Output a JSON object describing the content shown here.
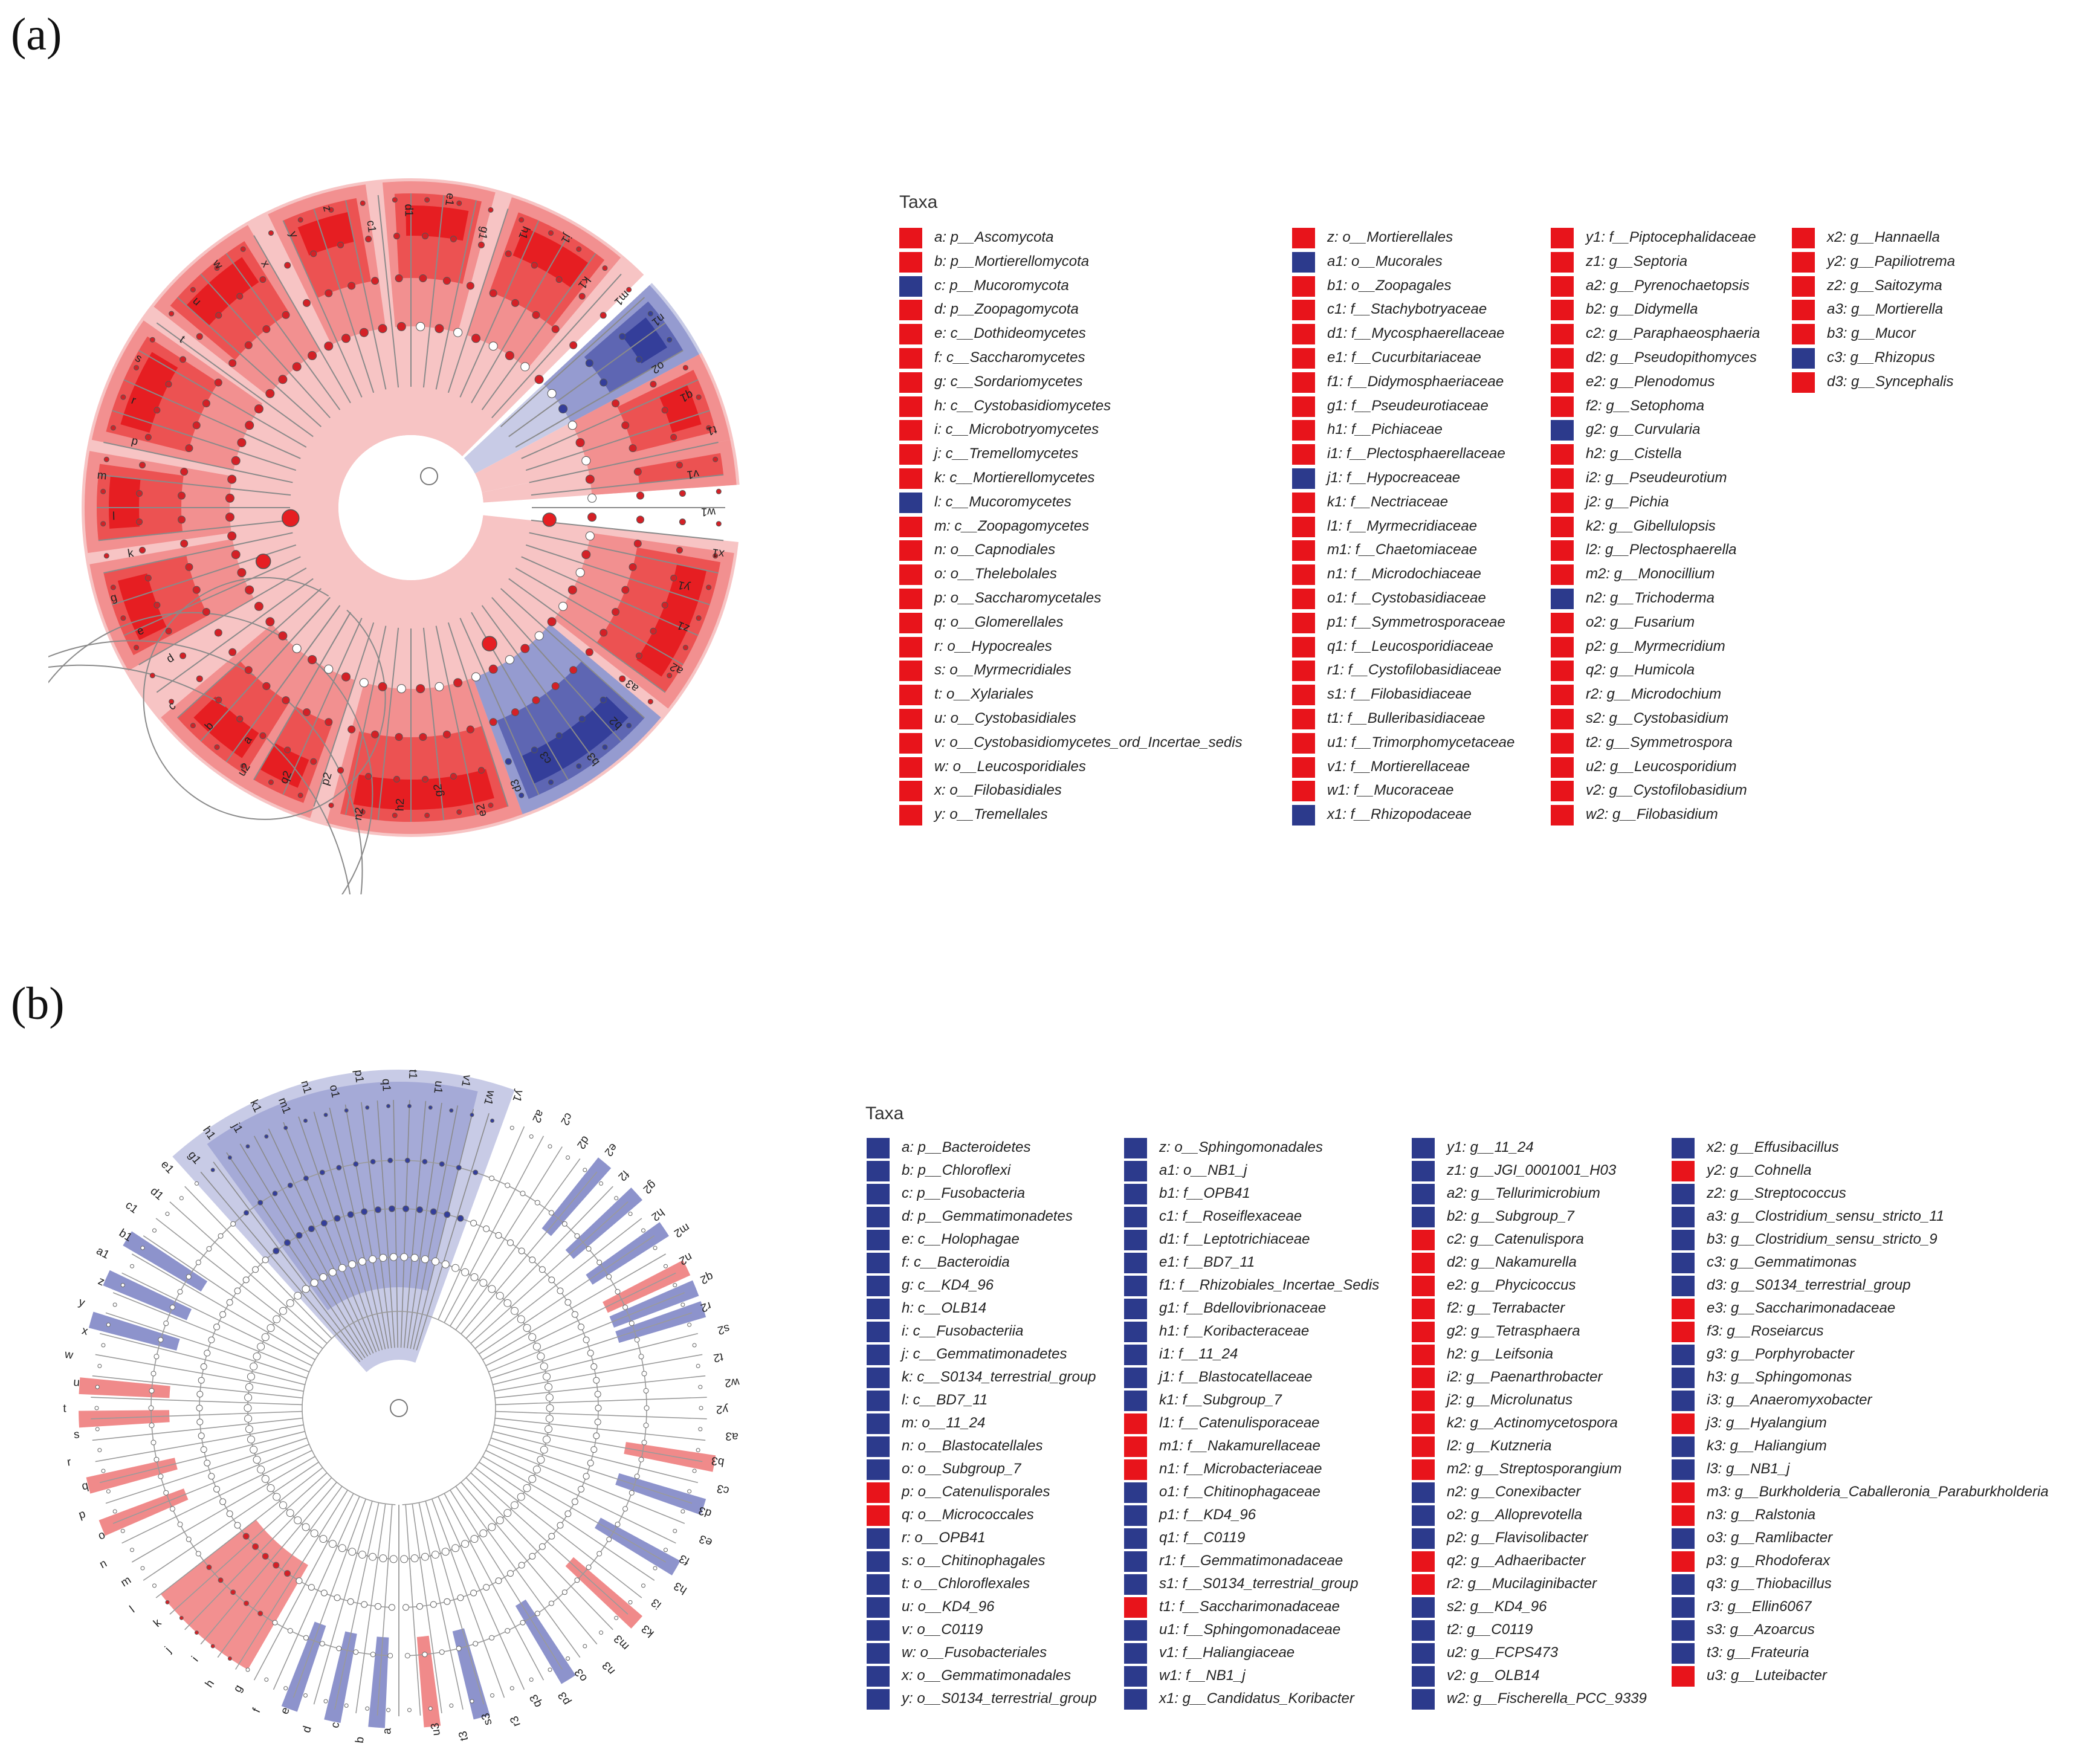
{
  "colors": {
    "enriched_red": "#e8141b",
    "enriched_blue": "#2c3a8c"
  },
  "panel_a": {
    "label": "(a)",
    "legend_title": "Taxa",
    "columns": [
      [
        {
          "text": "a: p__Ascomycota",
          "c": "red"
        },
        {
          "text": "b: p__Mortierellomycota",
          "c": "red"
        },
        {
          "text": "c: p__Mucoromycota",
          "c": "blue"
        },
        {
          "text": "d: p__Zoopagomycota",
          "c": "red"
        },
        {
          "text": "e: c__Dothideomycetes",
          "c": "red"
        },
        {
          "text": "f: c__Saccharomycetes",
          "c": "red"
        },
        {
          "text": "g: c__Sordariomycetes",
          "c": "red"
        },
        {
          "text": "h: c__Cystobasidiomycetes",
          "c": "red"
        },
        {
          "text": "i: c__Microbotryomycetes",
          "c": "red"
        },
        {
          "text": "j: c__Tremellomycetes",
          "c": "red"
        },
        {
          "text": "k: c__Mortierellomycetes",
          "c": "red"
        },
        {
          "text": "l: c__Mucoromycetes",
          "c": "blue"
        },
        {
          "text": "m: c__Zoopagomycetes",
          "c": "red"
        },
        {
          "text": "n: o__Capnodiales",
          "c": "red"
        },
        {
          "text": "o: o__Thelebolales",
          "c": "red"
        },
        {
          "text": "p: o__Saccharomycetales",
          "c": "red"
        },
        {
          "text": "q: o__Glomerellales",
          "c": "red"
        },
        {
          "text": "r: o__Hypocreales",
          "c": "red"
        },
        {
          "text": "s: o__Myrmecridiales",
          "c": "red"
        },
        {
          "text": "t: o__Xylariales",
          "c": "red"
        },
        {
          "text": "u: o__Cystobasidiales",
          "c": "red"
        },
        {
          "text": "v: o__Cystobasidiomycetes_ord_Incertae_sedis",
          "c": "red"
        },
        {
          "text": "w: o__Leucosporidiales",
          "c": "red"
        },
        {
          "text": "x: o__Filobasidiales",
          "c": "red"
        },
        {
          "text": "y: o__Tremellales",
          "c": "red"
        }
      ],
      [
        {
          "text": "z: o__Mortierellales",
          "c": "red"
        },
        {
          "text": "a1: o__Mucorales",
          "c": "blue"
        },
        {
          "text": "b1: o__Zoopagales",
          "c": "red"
        },
        {
          "text": "c1: f__Stachybotryaceae",
          "c": "red"
        },
        {
          "text": "d1: f__Mycosphaerellaceae",
          "c": "red"
        },
        {
          "text": "e1: f__Cucurbitariaceae",
          "c": "red"
        },
        {
          "text": "f1: f__Didymosphaeriaceae",
          "c": "red"
        },
        {
          "text": "g1: f__Pseudeurotiaceae",
          "c": "red"
        },
        {
          "text": "h1: f__Pichiaceae",
          "c": "red"
        },
        {
          "text": "i1: f__Plectosphaerellaceae",
          "c": "red"
        },
        {
          "text": "j1: f__Hypocreaceae",
          "c": "blue"
        },
        {
          "text": "k1: f__Nectriaceae",
          "c": "red"
        },
        {
          "text": "l1: f__Myrmecridiaceae",
          "c": "red"
        },
        {
          "text": "m1: f__Chaetomiaceae",
          "c": "red"
        },
        {
          "text": "n1: f__Microdochiaceae",
          "c": "red"
        },
        {
          "text": "o1: f__Cystobasidiaceae",
          "c": "red"
        },
        {
          "text": "p1: f__Symmetrosporaceae",
          "c": "red"
        },
        {
          "text": "q1: f__Leucosporidiaceae",
          "c": "red"
        },
        {
          "text": "r1: f__Cystofilobasidiaceae",
          "c": "red"
        },
        {
          "text": "s1: f__Filobasidiaceae",
          "c": "red"
        },
        {
          "text": "t1: f__Bulleribasidiaceae",
          "c": "red"
        },
        {
          "text": "u1: f__Trimorphomycetaceae",
          "c": "red"
        },
        {
          "text": "v1: f__Mortierellaceae",
          "c": "red"
        },
        {
          "text": "w1: f__Mucoraceae",
          "c": "red"
        },
        {
          "text": "x1: f__Rhizopodaceae",
          "c": "blue"
        }
      ],
      [
        {
          "text": "y1: f__Piptocephalidaceae",
          "c": "red"
        },
        {
          "text": "z1: g__Septoria",
          "c": "red"
        },
        {
          "text": "a2: g__Pyrenochaetopsis",
          "c": "red"
        },
        {
          "text": "b2: g__Didymella",
          "c": "red"
        },
        {
          "text": "c2: g__Paraphaeosphaeria",
          "c": "red"
        },
        {
          "text": "d2: g__Pseudopithomyces",
          "c": "red"
        },
        {
          "text": "e2: g__Plenodomus",
          "c": "red"
        },
        {
          "text": "f2: g__Setophoma",
          "c": "red"
        },
        {
          "text": "g2: g__Curvularia",
          "c": "blue"
        },
        {
          "text": "h2: g__Cistella",
          "c": "red"
        },
        {
          "text": "i2: g__Pseudeurotium",
          "c": "red"
        },
        {
          "text": "j2: g__Pichia",
          "c": "red"
        },
        {
          "text": "k2: g__Gibellulopsis",
          "c": "red"
        },
        {
          "text": "l2: g__Plectosphaerella",
          "c": "red"
        },
        {
          "text": "m2: g__Monocillium",
          "c": "red"
        },
        {
          "text": "n2: g__Trichoderma",
          "c": "blue"
        },
        {
          "text": "o2: g__Fusarium",
          "c": "red"
        },
        {
          "text": "p2: g__Myrmecridium",
          "c": "red"
        },
        {
          "text": "q2: g__Humicola",
          "c": "red"
        },
        {
          "text": "r2: g__Microdochium",
          "c": "red"
        },
        {
          "text": "s2: g__Cystobasidium",
          "c": "red"
        },
        {
          "text": "t2: g__Symmetrospora",
          "c": "red"
        },
        {
          "text": "u2: g__Leucosporidium",
          "c": "red"
        },
        {
          "text": "v2: g__Cystofilobasidium",
          "c": "red"
        },
        {
          "text": "w2: g__Filobasidium",
          "c": "red"
        }
      ],
      [
        {
          "text": "x2: g__Hannaella",
          "c": "red"
        },
        {
          "text": "y2: g__Papiliotrema",
          "c": "red"
        },
        {
          "text": "z2: g__Saitozyma",
          "c": "red"
        },
        {
          "text": "a3: g__Mortierella",
          "c": "red"
        },
        {
          "text": "b3: g__Mucor",
          "c": "red"
        },
        {
          "text": "c3: g__Rhizopus",
          "c": "blue"
        },
        {
          "text": "d3: g__Syncephalis",
          "c": "red"
        }
      ]
    ],
    "cladogram_labels": [
      "a",
      "b",
      "c",
      "d",
      "e",
      "g",
      "k",
      "l",
      "m",
      "p",
      "r",
      "s",
      "t",
      "u",
      "w",
      "x",
      "y",
      "z",
      "c1",
      "d1",
      "e1",
      "g1",
      "h1",
      "j1",
      "k1",
      "m1",
      "n1",
      "o2",
      "q1",
      "t1",
      "v1",
      "w1",
      "x1",
      "y1",
      "z1",
      "a2",
      "a3",
      "b2",
      "b3",
      "c3",
      "d3",
      "e2",
      "g2",
      "h2",
      "n2",
      "p2",
      "q2",
      "u2"
    ]
  },
  "panel_b": {
    "label": "(b)",
    "legend_title": "Taxa",
    "columns": [
      [
        {
          "text": "a: p__Bacteroidetes",
          "c": "blue"
        },
        {
          "text": "b: p__Chloroflexi",
          "c": "blue"
        },
        {
          "text": "c: p__Fusobacteria",
          "c": "blue"
        },
        {
          "text": "d: p__Gemmatimonadetes",
          "c": "blue"
        },
        {
          "text": "e: c__Holophagae",
          "c": "blue"
        },
        {
          "text": "f: c__Bacteroidia",
          "c": "blue"
        },
        {
          "text": "g: c__KD4_96",
          "c": "blue"
        },
        {
          "text": "h: c__OLB14",
          "c": "blue"
        },
        {
          "text": "i: c__Fusobacteriia",
          "c": "blue"
        },
        {
          "text": "j: c__Gemmatimonadetes",
          "c": "blue"
        },
        {
          "text": "k: c__S0134_terrestrial_group",
          "c": "blue"
        },
        {
          "text": "l: c__BD7_11",
          "c": "blue"
        },
        {
          "text": "m: o__11_24",
          "c": "blue"
        },
        {
          "text": "n: o__Blastocatellales",
          "c": "blue"
        },
        {
          "text": "o: o__Subgroup_7",
          "c": "blue"
        },
        {
          "text": "p: o__Catenulisporales",
          "c": "red"
        },
        {
          "text": "q: o__Micrococcales",
          "c": "red"
        },
        {
          "text": "r: o__OPB41",
          "c": "blue"
        },
        {
          "text": "s: o__Chitinophagales",
          "c": "blue"
        },
        {
          "text": "t: o__Chloroflexales",
          "c": "blue"
        },
        {
          "text": "u: o__KD4_96",
          "c": "blue"
        },
        {
          "text": "v: o__C0119",
          "c": "blue"
        },
        {
          "text": "w: o__Fusobacteriales",
          "c": "blue"
        },
        {
          "text": "x: o__Gemmatimonadales",
          "c": "blue"
        },
        {
          "text": "y: o__S0134_terrestrial_group",
          "c": "blue"
        }
      ],
      [
        {
          "text": "z: o__Sphingomonadales",
          "c": "blue"
        },
        {
          "text": "a1: o__NB1_j",
          "c": "blue"
        },
        {
          "text": "b1: f__OPB41",
          "c": "blue"
        },
        {
          "text": "c1: f__Roseiflexaceae",
          "c": "blue"
        },
        {
          "text": "d1: f__Leptotrichiaceae",
          "c": "blue"
        },
        {
          "text": "e1: f__BD7_11",
          "c": "blue"
        },
        {
          "text": "f1: f__Rhizobiales_Incertae_Sedis",
          "c": "blue"
        },
        {
          "text": "g1: f__Bdellovibrionaceae",
          "c": "blue"
        },
        {
          "text": "h1: f__Koribacteraceae",
          "c": "blue"
        },
        {
          "text": "i1: f__11_24",
          "c": "blue"
        },
        {
          "text": "j1: f__Blastocatellaceae",
          "c": "blue"
        },
        {
          "text": "k1: f__Subgroup_7",
          "c": "blue"
        },
        {
          "text": "l1: f__Catenulisporaceae",
          "c": "red"
        },
        {
          "text": "m1: f__Nakamurellaceae",
          "c": "red"
        },
        {
          "text": "n1: f__Microbacteriaceae",
          "c": "red"
        },
        {
          "text": "o1: f__Chitinophagaceae",
          "c": "blue"
        },
        {
          "text": "p1: f__KD4_96",
          "c": "blue"
        },
        {
          "text": "q1: f__C0119",
          "c": "blue"
        },
        {
          "text": "r1: f__Gemmatimonadaceae",
          "c": "blue"
        },
        {
          "text": "s1: f__S0134_terrestrial_group",
          "c": "blue"
        },
        {
          "text": "t1: f__Saccharimonadaceae",
          "c": "red"
        },
        {
          "text": "u1: f__Sphingomonadaceae",
          "c": "blue"
        },
        {
          "text": "v1: f__Haliangiaceae",
          "c": "blue"
        },
        {
          "text": "w1: f__NB1_j",
          "c": "blue"
        },
        {
          "text": "x1: g__Candidatus_Koribacter",
          "c": "blue"
        }
      ],
      [
        {
          "text": "y1: g__11_24",
          "c": "blue"
        },
        {
          "text": "z1: g__JGI_0001001_H03",
          "c": "blue"
        },
        {
          "text": "a2: g__Tellurimicrobium",
          "c": "blue"
        },
        {
          "text": "b2: g__Subgroup_7",
          "c": "blue"
        },
        {
          "text": "c2: g__Catenulispora",
          "c": "red"
        },
        {
          "text": "d2: g__Nakamurella",
          "c": "red"
        },
        {
          "text": "e2: g__Phycicoccus",
          "c": "red"
        },
        {
          "text": "f2: g__Terrabacter",
          "c": "red"
        },
        {
          "text": "g2: g__Tetrasphaera",
          "c": "red"
        },
        {
          "text": "h2: g__Leifsonia",
          "c": "red"
        },
        {
          "text": "i2: g__Paenarthrobacter",
          "c": "red"
        },
        {
          "text": "j2: g__Microlunatus",
          "c": "red"
        },
        {
          "text": "k2: g__Actinomycetospora",
          "c": "red"
        },
        {
          "text": "l2: g__Kutzneria",
          "c": "red"
        },
        {
          "text": "m2: g__Streptosporangium",
          "c": "red"
        },
        {
          "text": "n2: g__Conexibacter",
          "c": "blue"
        },
        {
          "text": "o2: g__Alloprevotella",
          "c": "blue"
        },
        {
          "text": "p2: g__Flavisolibacter",
          "c": "blue"
        },
        {
          "text": "q2: g__Adhaeribacter",
          "c": "red"
        },
        {
          "text": "r2: g__Mucilaginibacter",
          "c": "red"
        },
        {
          "text": "s2: g__KD4_96",
          "c": "blue"
        },
        {
          "text": "t2: g__C0119",
          "c": "blue"
        },
        {
          "text": "u2: g__FCPS473",
          "c": "blue"
        },
        {
          "text": "v2: g__OLB14",
          "c": "blue"
        },
        {
          "text": "w2: g__Fischerella_PCC_9339",
          "c": "blue"
        }
      ],
      [
        {
          "text": "x2: g__Effusibacillus",
          "c": "blue"
        },
        {
          "text": "y2: g__Cohnella",
          "c": "red"
        },
        {
          "text": "z2: g__Streptococcus",
          "c": "blue"
        },
        {
          "text": "a3: g__Clostridium_sensu_stricto_11",
          "c": "blue"
        },
        {
          "text": "b3: g__Clostridium_sensu_stricto_9",
          "c": "blue"
        },
        {
          "text": "c3: g__Gemmatimonas",
          "c": "blue"
        },
        {
          "text": "d3: g__S0134_terrestrial_group",
          "c": "blue"
        },
        {
          "text": "e3: g__Saccharimonadaceae",
          "c": "red"
        },
        {
          "text": "f3: g__Roseiarcus",
          "c": "red"
        },
        {
          "text": "g3: g__Porphyrobacter",
          "c": "blue"
        },
        {
          "text": "h3: g__Sphingomonas",
          "c": "blue"
        },
        {
          "text": "i3: g__Anaeromyxobacter",
          "c": "blue"
        },
        {
          "text": "j3: g__Hyalangium",
          "c": "red"
        },
        {
          "text": "k3: g__Haliangium",
          "c": "blue"
        },
        {
          "text": "l3: g__NB1_j",
          "c": "blue"
        },
        {
          "text": "m3: g__Burkholderia_Caballeronia_Paraburkholderia",
          "c": "red"
        },
        {
          "text": "n3: g__Ralstonia",
          "c": "red"
        },
        {
          "text": "o3: g__Ramlibacter",
          "c": "blue"
        },
        {
          "text": "p3: g__Rhodoferax",
          "c": "red"
        },
        {
          "text": "q3: g__Thiobacillus",
          "c": "blue"
        },
        {
          "text": "r3: g__Ellin6067",
          "c": "blue"
        },
        {
          "text": "s3: g__Azoarcus",
          "c": "blue"
        },
        {
          "text": "t3: g__Frateuria",
          "c": "blue"
        },
        {
          "text": "u3: g__Luteibacter",
          "c": "red"
        }
      ]
    ],
    "cladogram_labels": [
      "a",
      "b",
      "c",
      "d",
      "e",
      "f",
      "g",
      "h",
      "i",
      "j",
      "k",
      "l",
      "m",
      "n",
      "o",
      "p",
      "q",
      "r",
      "s",
      "t",
      "u",
      "w",
      "x",
      "y",
      "z",
      "a1",
      "b1",
      "c1",
      "d1",
      "e1",
      "g1",
      "h1",
      "j1",
      "k1",
      "m1",
      "n1",
      "o1",
      "p1",
      "q1",
      "t1",
      "u1",
      "v1",
      "w1",
      "y1",
      "a2",
      "c2",
      "d2",
      "e2",
      "f2",
      "g2",
      "h2",
      "m2",
      "n2",
      "q2",
      "r2",
      "s2",
      "t2",
      "w2",
      "y2",
      "a3",
      "b3",
      "c3",
      "d3",
      "e3",
      "f3",
      "h3",
      "i3",
      "k3",
      "m3",
      "n3",
      "o3",
      "p3",
      "q3",
      "r3",
      "s3",
      "t3",
      "u3"
    ]
  }
}
